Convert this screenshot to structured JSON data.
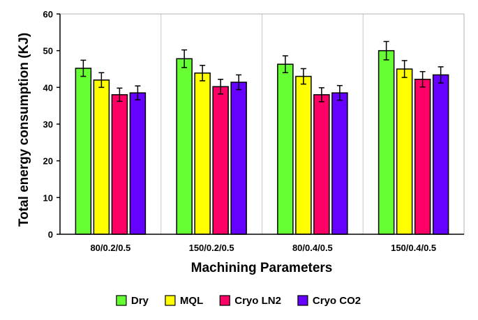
{
  "chart_data": {
    "type": "bar",
    "title": "",
    "xlabel": "Machining Parameters",
    "ylabel": "Total energy consumption (KJ)",
    "ylim": [
      0,
      60
    ],
    "yticks": [
      "0",
      "10",
      "20",
      "30",
      "40",
      "50",
      "60"
    ],
    "grid": "vertical category separators",
    "legend_position": "bottom",
    "categories": [
      "80/0.2/0.5",
      "150/0.2/0.5",
      "80/0.4/0.5",
      "150/0.4/0.5"
    ],
    "series": [
      {
        "name": "Dry",
        "color": "#66ff33",
        "values": [
          45.2,
          47.8,
          46.3,
          50.0
        ],
        "errors": [
          2.2,
          2.4,
          2.3,
          2.5
        ]
      },
      {
        "name": "MQL",
        "color": "#ffff00",
        "values": [
          42.0,
          43.9,
          43.0,
          45.0
        ],
        "errors": [
          2.0,
          2.1,
          2.1,
          2.3
        ]
      },
      {
        "name": "Cryo LN2",
        "color": "#ff0066",
        "values": [
          38.0,
          40.2,
          38.0,
          42.2
        ],
        "errors": [
          1.8,
          2.0,
          1.9,
          2.1
        ]
      },
      {
        "name": "Cryo CO2",
        "color": "#6600ff",
        "values": [
          38.5,
          41.4,
          38.5,
          43.4
        ],
        "errors": [
          1.9,
          2.0,
          2.0,
          2.2
        ]
      }
    ]
  }
}
